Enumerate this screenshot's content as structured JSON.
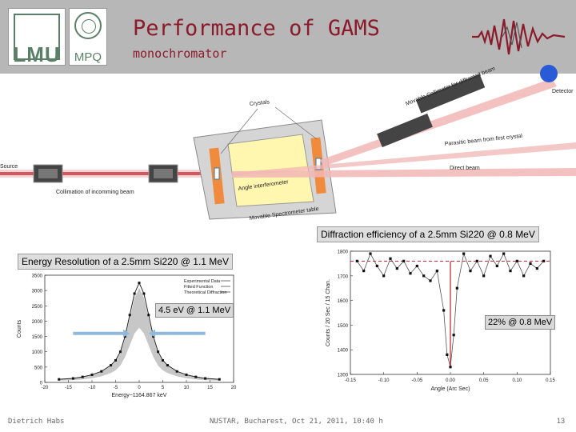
{
  "header": {
    "title": "Performance of GAMS",
    "subtitle": "monochromator",
    "logos": {
      "lmu": "LMU",
      "mpq": "MPQ"
    }
  },
  "diagram": {
    "labels": {
      "source": "Source",
      "collimation": "Collimation of incomming beam",
      "crystals": "Crystals",
      "interferometer": "Angle interferometer",
      "table": "Movable Spectrometer table",
      "collimator": "Movable Collimator for diffracted beam",
      "detector": "Detector",
      "parasitic": "Parasitic beam from first crystal",
      "direct": "Direct beam"
    }
  },
  "captions": {
    "diffraction": "Diffraction efficiency of a 2.5mm Si220 @ 0.8 MeV",
    "energy": "Energy Resolution of a 2.5mm Si220 @ 1.1 MeV",
    "badge_left": "4.5 eV @ 1.1 MeV",
    "badge_right": "22% @ 0.8 MeV"
  },
  "chart_data": [
    {
      "type": "scatter",
      "xlabel": "Energy−1164.867 keV",
      "ylabel": "Counts",
      "xlim": [
        -20,
        20
      ],
      "ylim": [
        0,
        3500
      ],
      "xticks": [
        -20,
        -15,
        -10,
        -5,
        0,
        5,
        10,
        15,
        20
      ],
      "yticks": [
        0,
        500,
        1000,
        1500,
        2000,
        2500,
        3000,
        3500
      ],
      "legend": [
        "Experimental Data",
        "Fitted Function",
        "Theoretical Diffraction"
      ],
      "legend_position": "top-right",
      "series": [
        {
          "name": "Experimental Data",
          "x": [
            -17,
            -14,
            -12,
            -10,
            -8,
            -6,
            -5,
            -4,
            -3,
            -2,
            -1,
            0,
            1,
            2,
            3,
            4,
            5,
            6,
            8,
            10,
            12,
            14,
            17
          ],
          "y": [
            100,
            130,
            180,
            250,
            360,
            560,
            720,
            1000,
            1500,
            2200,
            2900,
            3250,
            2900,
            2200,
            1500,
            1000,
            720,
            560,
            360,
            250,
            180,
            130,
            100
          ]
        }
      ]
    },
    {
      "type": "line",
      "xlabel": "Angle (Arc Sec)",
      "ylabel": "Counts / 20 Sec / 15 Chan.",
      "xlim": [
        -0.15,
        0.15
      ],
      "ylim": [
        1300,
        1800
      ],
      "xticks": [
        -0.15,
        -0.1,
        -0.05,
        0.0,
        0.05,
        0.1,
        0.15
      ],
      "yticks": [
        1300,
        1400,
        1500,
        1600,
        1700,
        1800
      ],
      "reference_level": 1760,
      "series": [
        {
          "name": "",
          "x": [
            -0.14,
            -0.13,
            -0.12,
            -0.11,
            -0.1,
            -0.09,
            -0.08,
            -0.07,
            -0.06,
            -0.05,
            -0.04,
            -0.03,
            -0.02,
            -0.01,
            -0.005,
            0.0,
            0.005,
            0.01,
            0.02,
            0.03,
            0.04,
            0.05,
            0.06,
            0.07,
            0.08,
            0.09,
            0.1,
            0.11,
            0.12,
            0.13,
            0.14
          ],
          "y": [
            1760,
            1720,
            1790,
            1740,
            1700,
            1770,
            1730,
            1760,
            1710,
            1740,
            1700,
            1680,
            1720,
            1560,
            1380,
            1330,
            1460,
            1650,
            1790,
            1720,
            1760,
            1700,
            1780,
            1740,
            1790,
            1720,
            1760,
            1700,
            1750,
            1730,
            1760
          ]
        }
      ]
    }
  ],
  "footer": {
    "author": "Dietrich Habs",
    "event": "NUSTAR, Bucharest, Oct 21, 2011, 10:40 h",
    "page": "13"
  }
}
